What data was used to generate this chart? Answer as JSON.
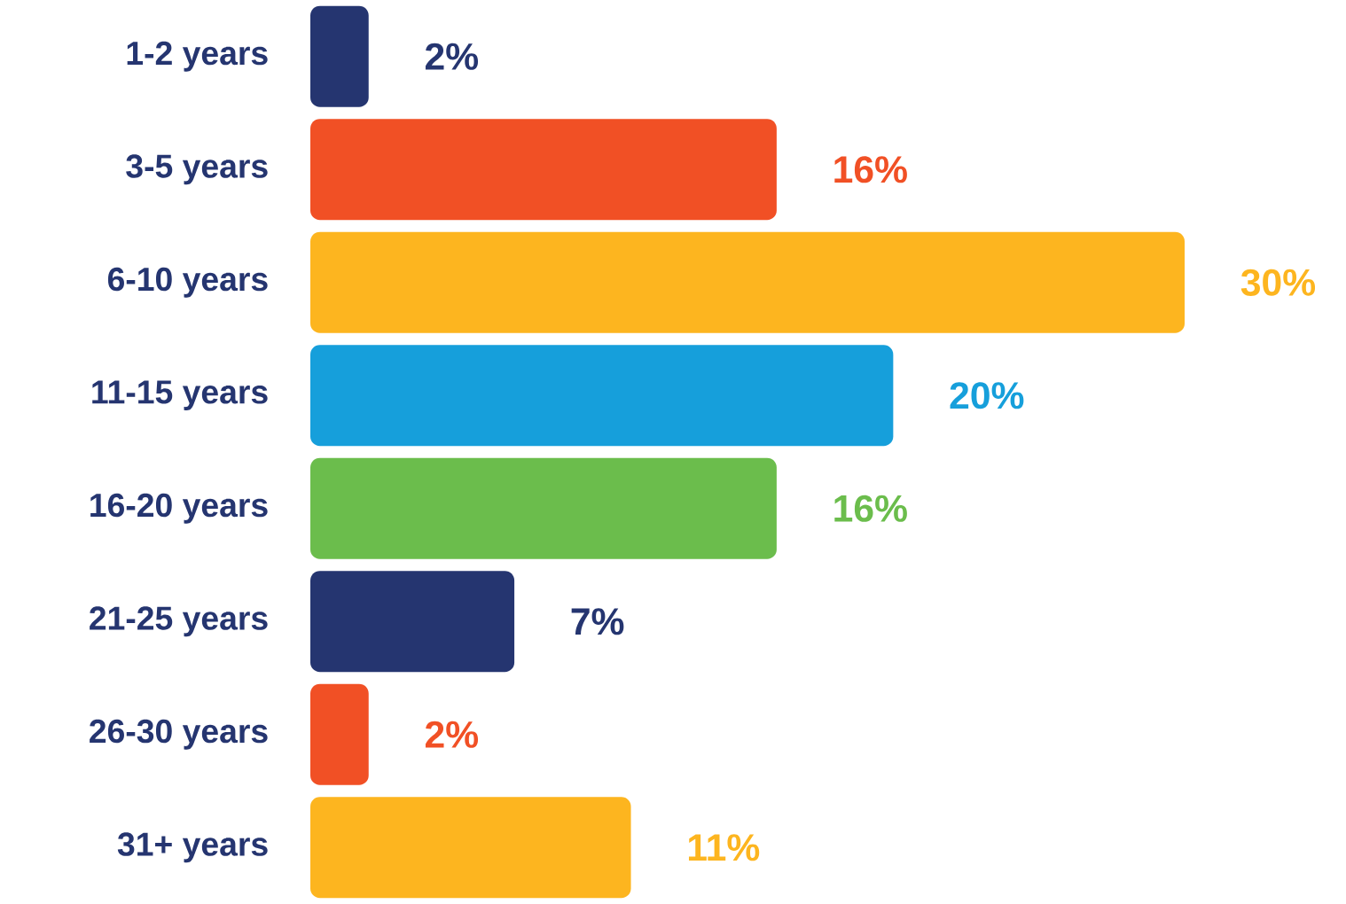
{
  "chart_data": {
    "type": "bar",
    "orientation": "horizontal",
    "categories": [
      "1-2 years",
      "3-5 years",
      "6-10 years",
      "11-15 years",
      "16-20 years",
      "21-25 years",
      "26-30 years",
      "31+ years"
    ],
    "values": [
      2,
      16,
      30,
      20,
      16,
      7,
      2,
      11
    ],
    "colors": [
      "#253570",
      "#f15025",
      "#fdb51f",
      "#169fdb",
      "#6bbd4c",
      "#253570",
      "#f15025",
      "#fdb51f"
    ],
    "value_labels": [
      "2%",
      "16%",
      "30%",
      "20%",
      "16%",
      "7%",
      "2%",
      "11%"
    ],
    "tick_labels": "y"
  }
}
